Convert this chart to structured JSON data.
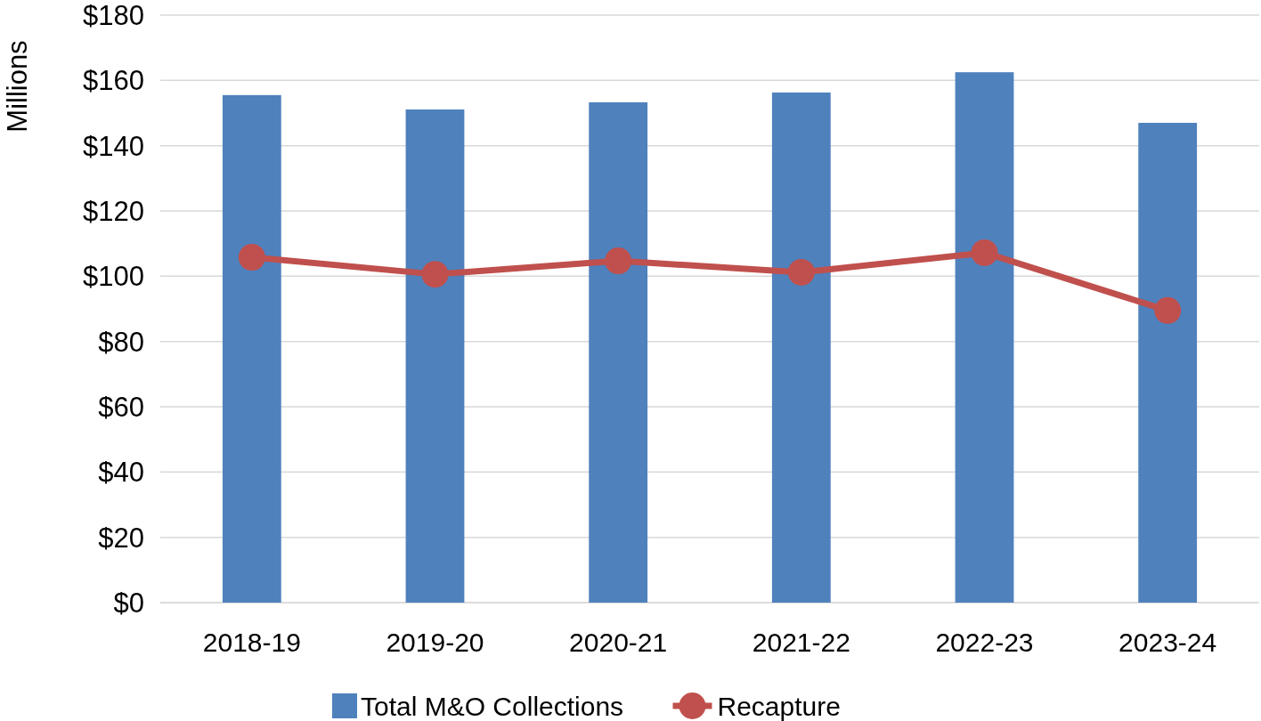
{
  "chart_data": {
    "type": "bar",
    "ylabel": "Millions",
    "categories": [
      "2018-19",
      "2019-20",
      "2020-21",
      "2021-22",
      "2022-23",
      "2023-24"
    ],
    "series": [
      {
        "name": "Total M&O Collections",
        "color": "#4f81bd",
        "values": [
          155.5,
          151.1,
          153.3,
          156.3,
          162.5,
          147.0
        ]
      },
      {
        "name": "Recapture",
        "type": "line",
        "color": "#c0504d",
        "marker": "circle",
        "values": [
          105.8,
          100.6,
          104.7,
          101.2,
          107.2,
          89.5
        ]
      }
    ],
    "ylim": [
      0,
      180
    ],
    "yticks": [
      {
        "value": 0,
        "label": "$0"
      },
      {
        "value": 20,
        "label": "$20"
      },
      {
        "value": 40,
        "label": "$40"
      },
      {
        "value": 60,
        "label": "$60"
      },
      {
        "value": 80,
        "label": "$80"
      },
      {
        "value": 100,
        "label": "$100"
      },
      {
        "value": 120,
        "label": "$120"
      },
      {
        "value": 140,
        "label": "$140"
      },
      {
        "value": 160,
        "label": "$160"
      },
      {
        "value": 180,
        "label": "$180"
      }
    ],
    "grid": "y",
    "legend": "bottom"
  }
}
